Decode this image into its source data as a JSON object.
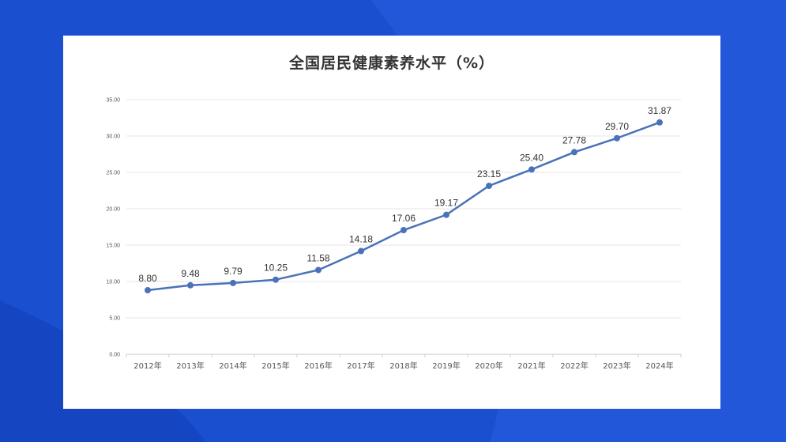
{
  "colors": {
    "background": "#1a4fd0",
    "card": "#ffffff",
    "series": "#4a72b8",
    "grid": "#e6e6e6"
  },
  "chart_data": {
    "type": "line",
    "title": "全国居民健康素养水平（%）",
    "xlabel": "",
    "ylabel": "",
    "ylim": [
      0,
      35
    ],
    "yticks": [
      "0.00",
      "5.00",
      "10.00",
      "15.00",
      "20.00",
      "25.00",
      "30.00",
      "35.00"
    ],
    "grid": true,
    "legend": "none",
    "categories": [
      "2012年",
      "2013年",
      "2014年",
      "2015年",
      "2016年",
      "2017年",
      "2018年",
      "2019年",
      "2020年",
      "2021年",
      "2022年",
      "2023年",
      "2024年"
    ],
    "series": [
      {
        "values": [
          8.8,
          9.48,
          9.79,
          10.25,
          11.58,
          14.18,
          17.06,
          19.17,
          23.15,
          25.4,
          27.78,
          29.7,
          31.87
        ],
        "labels": [
          "8.80",
          "9.48",
          "9.79",
          "10.25",
          "11.58",
          "14.18",
          "17.06",
          "19.17",
          "23.15",
          "25.40",
          "27.78",
          "29.70",
          "31.87"
        ]
      }
    ]
  }
}
